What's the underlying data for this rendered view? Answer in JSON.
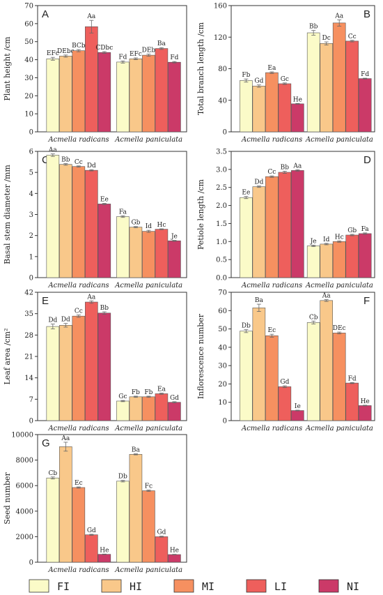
{
  "colors": {
    "FI": "#fbfbc8",
    "HI": "#f9c88a",
    "MI": "#f69060",
    "LI": "#ee5f5c",
    "NI": "#cb3a68",
    "axis": "#333333",
    "error": "#666666"
  },
  "legend": [
    "FI",
    "HI",
    "MI",
    "LI",
    "NI"
  ],
  "chart_data": [
    {
      "type": "bar",
      "letter": "A",
      "ylabel": "Plant height /cm",
      "ylim": [
        0,
        70
      ],
      "yticks": [
        0,
        10,
        20,
        30,
        40,
        50,
        60,
        70
      ],
      "categories": [
        "Acmella radicans",
        "Acmella paniculata"
      ],
      "series": [
        {
          "name": "FI",
          "values": [
            40.5,
            38.7
          ],
          "errors": [
            0.8,
            0.6
          ],
          "labels": [
            "EFc",
            "Fd"
          ]
        },
        {
          "name": "HI",
          "values": [
            42.0,
            40.5
          ],
          "errors": [
            0.6,
            0.5
          ],
          "labels": [
            "DEbc",
            "EFc"
          ]
        },
        {
          "name": "MI",
          "values": [
            45.0,
            42.5
          ],
          "errors": [
            0.6,
            0.6
          ],
          "labels": [
            "BCb",
            "DEb"
          ]
        },
        {
          "name": "LI",
          "values": [
            58.3,
            46.2
          ],
          "errors": [
            3.5,
            0.5
          ],
          "labels": [
            "Aa",
            "Ba"
          ]
        },
        {
          "name": "NI",
          "values": [
            44.0,
            38.6
          ],
          "errors": [
            0.5,
            0.4
          ],
          "labels": [
            "CDbc",
            "Fd"
          ]
        }
      ]
    },
    {
      "type": "bar",
      "letter": "B",
      "ylabel": "Total branch length /cm",
      "ylim": [
        0,
        160
      ],
      "yticks": [
        0,
        40,
        80,
        120,
        160
      ],
      "categories": [
        "Acmella radicans",
        "Acmella paniculata"
      ],
      "series": [
        {
          "name": "FI",
          "values": [
            65.0,
            125.5
          ],
          "errors": [
            2.0,
            3.0
          ],
          "labels": [
            "Fb",
            "Bb"
          ]
        },
        {
          "name": "HI",
          "values": [
            58.0,
            112.0
          ],
          "errors": [
            1.5,
            2.0
          ],
          "labels": [
            "Gd",
            "Dc"
          ]
        },
        {
          "name": "MI",
          "values": [
            75.0,
            138.0
          ],
          "errors": [
            1.0,
            4.0
          ],
          "labels": [
            "Ea",
            "Aa"
          ]
        },
        {
          "name": "LI",
          "values": [
            61.0,
            115.0
          ],
          "errors": [
            1.0,
            1.0
          ],
          "labels": [
            "Gc",
            "Cc"
          ]
        },
        {
          "name": "NI",
          "values": [
            35.5,
            67.5
          ],
          "errors": [
            0.5,
            0.5
          ],
          "labels": [
            "He",
            "Fd"
          ]
        }
      ]
    },
    {
      "type": "bar",
      "letter": "C",
      "ylabel": "Basal stem diameter /mm",
      "ylim": [
        0,
        6
      ],
      "yticks": [
        0,
        1,
        2,
        3,
        4,
        5,
        6
      ],
      "categories": [
        "Acmella radicans",
        "Acmella paniculata"
      ],
      "series": [
        {
          "name": "FI",
          "values": [
            5.82,
            2.9
          ],
          "errors": [
            0.06,
            0.04
          ],
          "labels": [
            "Aa",
            "Fa"
          ]
        },
        {
          "name": "HI",
          "values": [
            5.38,
            2.4
          ],
          "errors": [
            0.04,
            0.03
          ],
          "labels": [
            "Bb",
            "Gb"
          ]
        },
        {
          "name": "MI",
          "values": [
            5.28,
            2.2
          ],
          "errors": [
            0.03,
            0.05
          ],
          "labels": [
            "Cc",
            "Id"
          ]
        },
        {
          "name": "LI",
          "values": [
            5.1,
            2.3
          ],
          "errors": [
            0.03,
            0.02
          ],
          "labels": [
            "Dd",
            "Hc"
          ]
        },
        {
          "name": "NI",
          "values": [
            3.5,
            1.75
          ],
          "errors": [
            0.03,
            0.02
          ],
          "labels": [
            "Ee",
            "Je"
          ]
        }
      ]
    },
    {
      "type": "bar",
      "letter": "D",
      "ylabel": "Petiole length /cm",
      "ylim": [
        0,
        3.5
      ],
      "yticks": [
        0.0,
        0.5,
        1.0,
        1.5,
        2.0,
        2.5,
        3.0,
        3.5
      ],
      "categories": [
        "Acmella radicans",
        "Acmella paniculata"
      ],
      "series": [
        {
          "name": "FI",
          "values": [
            2.22,
            0.88
          ],
          "errors": [
            0.03,
            0.02
          ],
          "labels": [
            "Ee",
            "Je"
          ]
        },
        {
          "name": "HI",
          "values": [
            2.52,
            0.93
          ],
          "errors": [
            0.02,
            0.02
          ],
          "labels": [
            "Dd",
            "Id"
          ]
        },
        {
          "name": "MI",
          "values": [
            2.8,
            1.0
          ],
          "errors": [
            0.02,
            0.02
          ],
          "labels": [
            "Cc",
            "Hc"
          ]
        },
        {
          "name": "LI",
          "values": [
            2.92,
            1.18
          ],
          "errors": [
            0.03,
            0.02
          ],
          "labels": [
            "Bb",
            "Gb"
          ]
        },
        {
          "name": "NI",
          "values": [
            2.97,
            1.22
          ],
          "errors": [
            0.02,
            0.02
          ],
          "labels": [
            "Aa",
            "Fa"
          ]
        }
      ]
    },
    {
      "type": "bar",
      "letter": "E",
      "ylabel": "Leaf area /cm²",
      "ylim": [
        0,
        42
      ],
      "yticks": [
        0,
        7,
        14,
        21,
        28,
        35,
        42
      ],
      "categories": [
        "Acmella radicans",
        "Acmella paniculata"
      ],
      "series": [
        {
          "name": "FI",
          "values": [
            30.8,
            6.4
          ],
          "errors": [
            0.8,
            0.2
          ],
          "labels": [
            "Dd",
            "Gc"
          ]
        },
        {
          "name": "HI",
          "values": [
            31.2,
            7.8
          ],
          "errors": [
            0.6,
            0.2
          ],
          "labels": [
            "Dd",
            "Fb"
          ]
        },
        {
          "name": "MI",
          "values": [
            34.2,
            7.8
          ],
          "errors": [
            0.4,
            0.2
          ],
          "labels": [
            "Cc",
            "Fb"
          ]
        },
        {
          "name": "LI",
          "values": [
            38.8,
            8.8
          ],
          "errors": [
            0.4,
            0.2
          ],
          "labels": [
            "Aa",
            "Ea"
          ]
        },
        {
          "name": "NI",
          "values": [
            35.2,
            6.0
          ],
          "errors": [
            0.4,
            0.2
          ],
          "labels": [
            "Bb",
            "Gd"
          ]
        }
      ]
    },
    {
      "type": "bar",
      "letter": "F",
      "ylabel": "Inflorescence number",
      "ylim": [
        0,
        70
      ],
      "yticks": [
        0,
        10,
        20,
        30,
        40,
        50,
        60,
        70
      ],
      "categories": [
        "Acmella radicans",
        "Acmella paniculata"
      ],
      "series": [
        {
          "name": "FI",
          "values": [
            48.8,
            53.5
          ],
          "errors": [
            0.8,
            0.8
          ],
          "labels": [
            "Db",
            "Cb"
          ]
        },
        {
          "name": "HI",
          "values": [
            61.5,
            65.5
          ],
          "errors": [
            2.0,
            0.5
          ],
          "labels": [
            "Ba",
            "Aa"
          ]
        },
        {
          "name": "MI",
          "values": [
            46.3,
            47.8
          ],
          "errors": [
            0.8,
            0.5
          ],
          "labels": [
            "Ec",
            "DEc"
          ]
        },
        {
          "name": "LI",
          "values": [
            18.5,
            20.5
          ],
          "errors": [
            0.5,
            0.3
          ],
          "labels": [
            "Gd",
            "Fd"
          ]
        },
        {
          "name": "NI",
          "values": [
            5.5,
            8.2
          ],
          "errors": [
            0.2,
            0.2
          ],
          "labels": [
            "Ie",
            "He"
          ]
        }
      ]
    },
    {
      "type": "bar",
      "letter": "G",
      "ylabel": "Seed number",
      "ylim": [
        0,
        10000
      ],
      "yticks": [
        0,
        2000,
        4000,
        6000,
        8000,
        10000
      ],
      "categories": [
        "Acmella radicans",
        "Acmella paniculata"
      ],
      "series": [
        {
          "name": "FI",
          "values": [
            6600,
            6350
          ],
          "errors": [
            80,
            60
          ],
          "labels": [
            "Cb",
            "Db"
          ]
        },
        {
          "name": "HI",
          "values": [
            9050,
            8450
          ],
          "errors": [
            350,
            40
          ],
          "labels": [
            "Aa",
            "Ba"
          ]
        },
        {
          "name": "MI",
          "values": [
            5850,
            5600
          ],
          "errors": [
            50,
            50
          ],
          "labels": [
            "Ec",
            "Fc"
          ]
        },
        {
          "name": "LI",
          "values": [
            2150,
            2000
          ],
          "errors": [
            40,
            40
          ],
          "labels": [
            "Gd",
            "Gd"
          ]
        },
        {
          "name": "NI",
          "values": [
            620,
            600
          ],
          "errors": [
            20,
            20
          ],
          "labels": [
            "He",
            "He"
          ]
        }
      ]
    }
  ]
}
